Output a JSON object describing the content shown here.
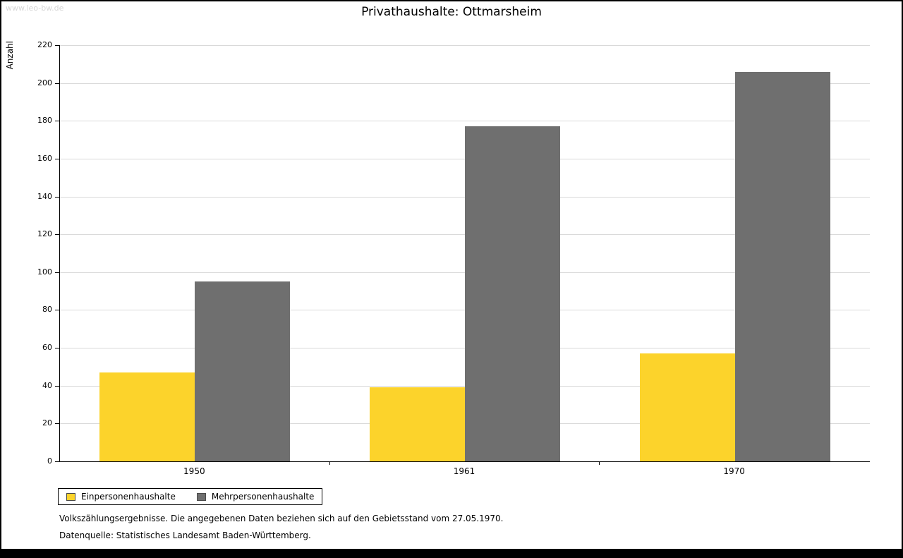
{
  "watermark": "www.leo-bw.de",
  "title": "Privathaushalte: Ottmarsheim",
  "footnotes": {
    "line1": "Volkszählungsergebnisse. Die angegebenen Daten beziehen sich auf den Gebietsstand vom 27.05.1970.",
    "line2": "Datenquelle: Statistisches Landesamt Baden-Württemberg."
  },
  "colors": {
    "series1": "#FCD32B",
    "series2": "#6F6F6F",
    "grid": "#d9d9d9",
    "axis": "#000000",
    "watermark": "#d6d6d6"
  },
  "chart_data": {
    "type": "bar",
    "title": "Privathaushalte: Ottmarsheim",
    "categories": [
      "1950",
      "1961",
      "1970"
    ],
    "series": [
      {
        "name": "Einpersonenhaushalte",
        "color": "#FCD32B",
        "values": [
          47,
          39,
          57
        ]
      },
      {
        "name": "Mehrpersonenhaushalte",
        "color": "#6F6F6F",
        "values": [
          95,
          177,
          206
        ]
      }
    ],
    "xlabel": "",
    "ylabel": "Anzahl",
    "ylim": [
      0,
      220
    ],
    "ytick_step": 20,
    "grid": true,
    "legend_position": "bottom-left"
  }
}
